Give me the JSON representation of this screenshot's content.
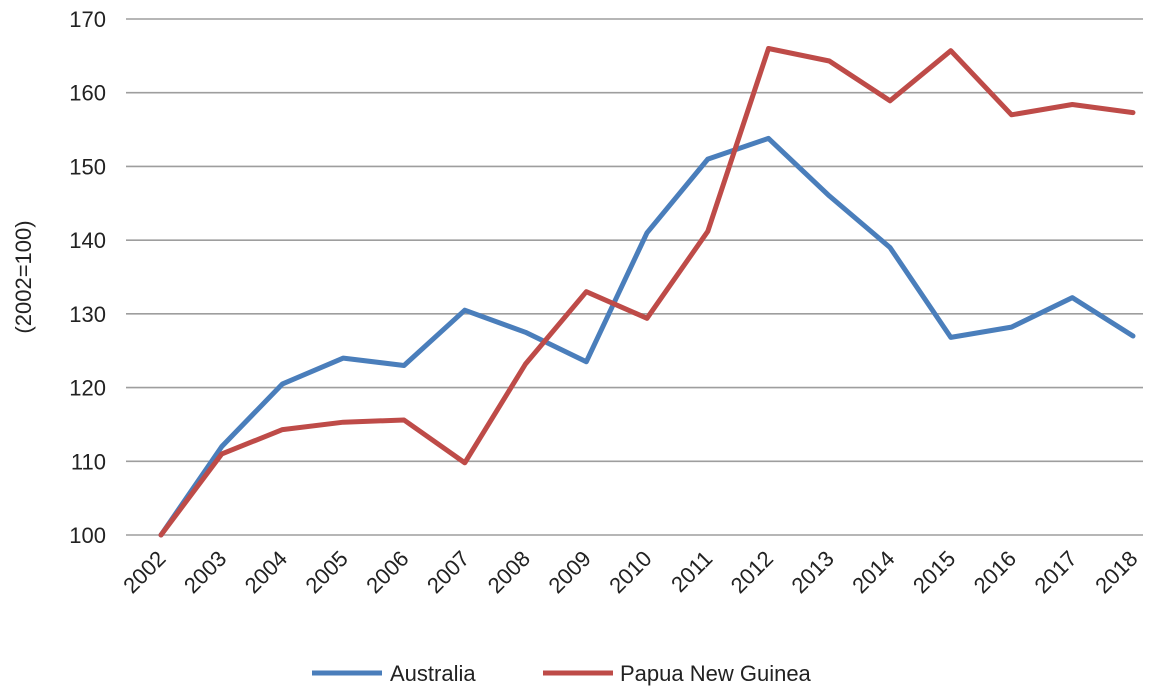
{
  "chart_data": {
    "type": "line",
    "title": "",
    "xlabel": "",
    "ylabel": "(2002=100)",
    "ylim": [
      100,
      170
    ],
    "yticks": [
      100,
      110,
      120,
      130,
      140,
      150,
      160,
      170
    ],
    "grid": "horizontal",
    "legend": "bottom",
    "x": [
      "2002",
      "2003",
      "2004",
      "2005",
      "2006",
      "2007",
      "2008",
      "2009",
      "2010",
      "2011",
      "2012",
      "2013",
      "2014",
      "2015",
      "2016",
      "2017",
      "2018"
    ],
    "series": [
      {
        "name": "Australia",
        "color": "#4a7ebb",
        "values": [
          100,
          112,
          120.5,
          124,
          123,
          130.5,
          127.5,
          123.5,
          141,
          151,
          153.8,
          146,
          139,
          126.8,
          128.2,
          132.2,
          127
        ]
      },
      {
        "name": "Papua New Guinea",
        "color": "#be4b48",
        "values": [
          100,
          111,
          114.3,
          115.3,
          115.6,
          109.8,
          123.2,
          133,
          129.4,
          141.2,
          166,
          164.3,
          158.9,
          165.7,
          157,
          158.4,
          157.3
        ]
      }
    ]
  }
}
